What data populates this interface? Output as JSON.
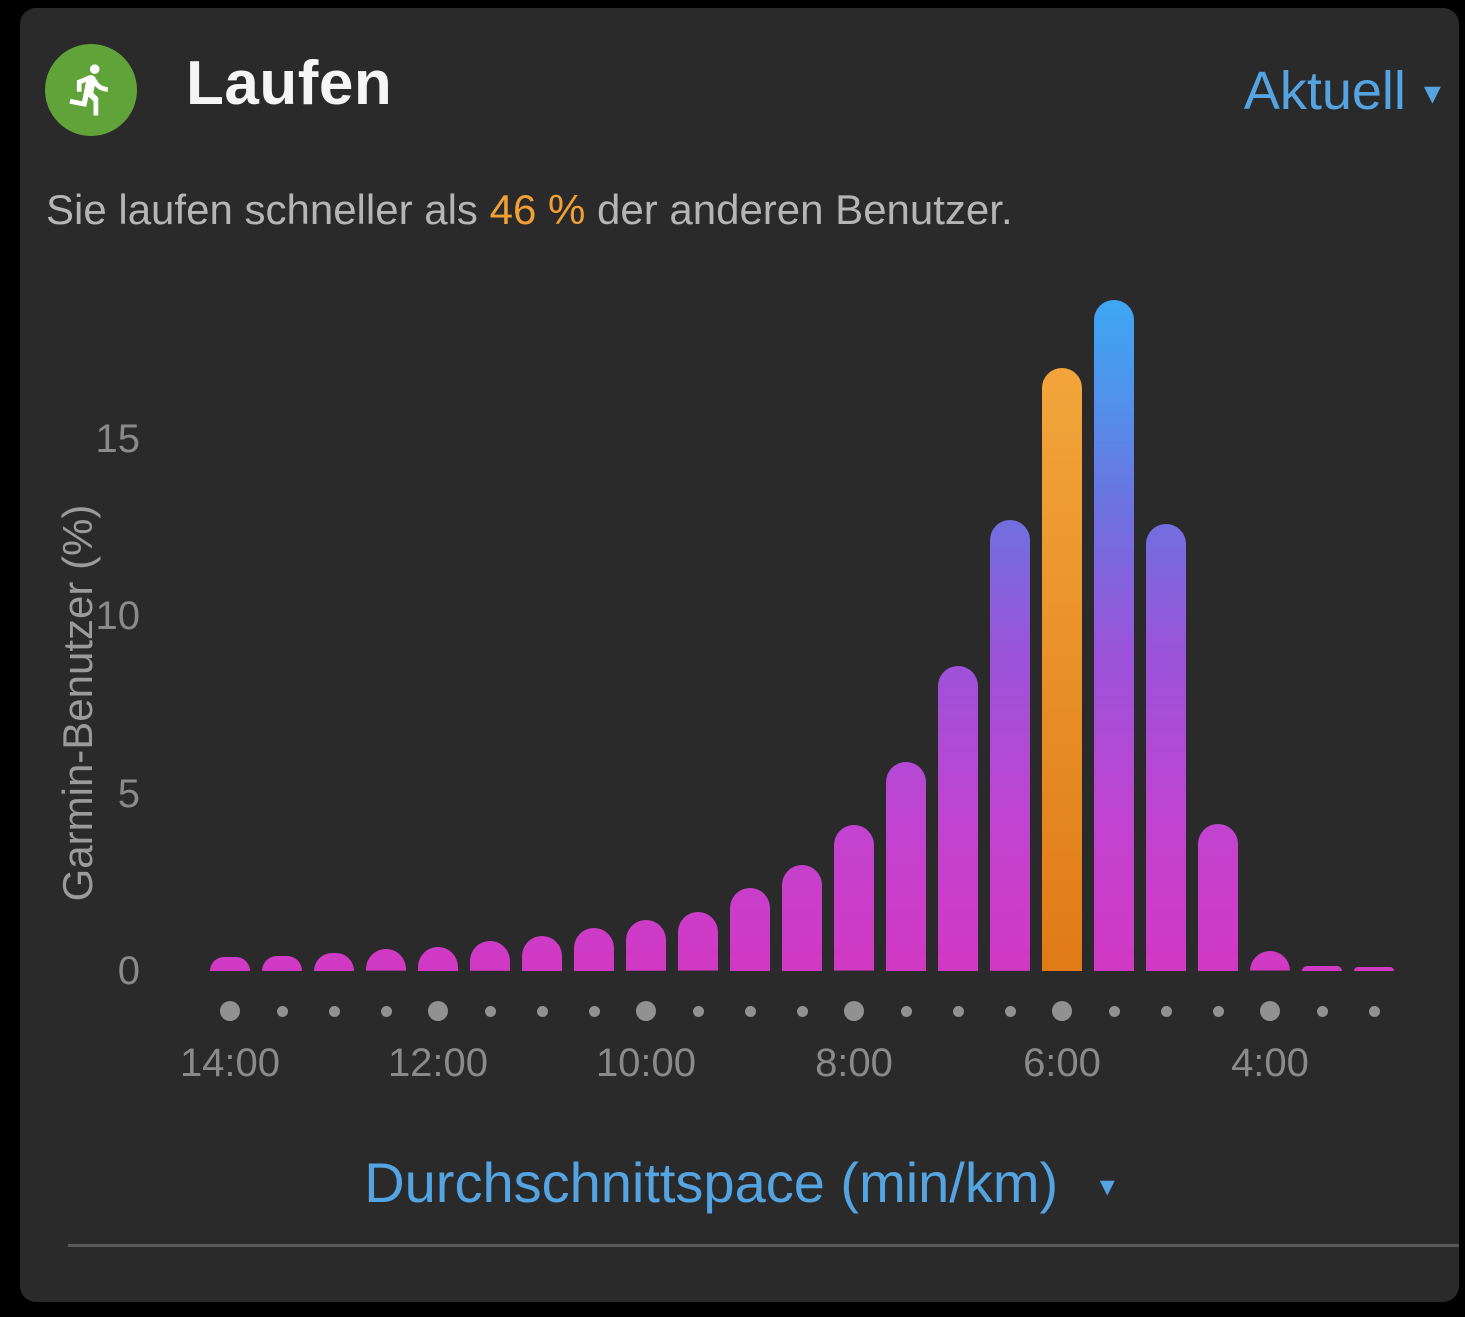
{
  "header": {
    "title": "Laufen",
    "period_selector": "Aktuell",
    "dropdown_arrow": "▾",
    "icon_color": "#60a439"
  },
  "subtitle": {
    "prefix": "Sie laufen schneller als ",
    "highlight": "46 %",
    "suffix": " der anderen Benutzer.",
    "highlight_color": "#f0a035"
  },
  "chart_data": {
    "type": "bar",
    "title": "",
    "ylabel": "Garmin-Benutzer (%)",
    "xlabel": "Durchschnittspace (min/km)",
    "ylim": [
      0,
      19.7
    ],
    "grid": false,
    "y_ticks": [
      0,
      5,
      10,
      15
    ],
    "x_tick_labels": [
      "14:00",
      "12:00",
      "10:00",
      "8:00",
      "6:00",
      "4:00"
    ],
    "categories": [
      "14:00",
      "13:30",
      "13:00",
      "12:30",
      "12:00",
      "11:30",
      "11:00",
      "10:30",
      "10:00",
      "9:30",
      "9:00",
      "8:30",
      "8:00",
      "7:30",
      "7:00",
      "6:30",
      "6:00",
      "5:30",
      "5:00",
      "4:30",
      "4:00",
      "3:30",
      "3:00"
    ],
    "values": [
      0.4,
      0.42,
      0.52,
      0.61,
      0.68,
      0.84,
      1.0,
      1.22,
      1.43,
      1.65,
      2.35,
      3.0,
      4.1,
      5.9,
      8.6,
      12.7,
      17.0,
      18.9,
      12.6,
      4.15,
      0.55,
      0.15,
      0.1
    ],
    "highlight_index": 16,
    "highlight_label": "6:00",
    "colors": {
      "gradient_bottom": "#d139c3",
      "gradient_mid": "#9c53da",
      "gradient_top": "#3aacf5",
      "highlight_bar": "#f0981f",
      "axis_text": "#8a8a8a"
    }
  },
  "footer": {
    "label": "Durchschnittspace (min/km)",
    "dropdown_arrow": "▾"
  }
}
